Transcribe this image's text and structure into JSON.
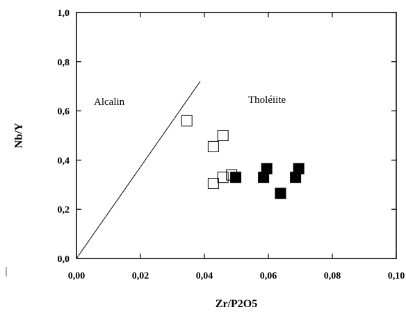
{
  "chart_data": {
    "type": "scatter",
    "xlabel": "Zr/P2O5",
    "ylabel": "Nb/Y",
    "xlim": [
      0.0,
      0.1
    ],
    "ylim": [
      0.0,
      1.0
    ],
    "x_ticks": [
      "0,00",
      "0,02",
      "0,04",
      "0,06",
      "0,08",
      "0,10"
    ],
    "y_ticks": [
      "0,0",
      "0,2",
      "0,4",
      "0,6",
      "0,8",
      "1,0"
    ],
    "grid": false,
    "annotations": {
      "alkaline_region": "Alcalin",
      "tholeiite_region": "Tholéiite"
    },
    "boundary_line": {
      "x": [
        0.0,
        0.0387
      ],
      "y": [
        0.0,
        0.72
      ]
    },
    "series": [
      {
        "marker": "open-square",
        "color": "#000000",
        "x": [
          0.0345,
          0.0428,
          0.0458,
          0.0428,
          0.0458,
          0.0485
        ],
        "y": [
          0.56,
          0.455,
          0.5,
          0.305,
          0.33,
          0.34
        ]
      },
      {
        "marker": "filled-square",
        "color": "#000000",
        "x": [
          0.0498,
          0.0585,
          0.0595,
          0.0638,
          0.0685,
          0.0695
        ],
        "y": [
          0.33,
          0.33,
          0.365,
          0.265,
          0.33,
          0.365
        ]
      }
    ]
  }
}
